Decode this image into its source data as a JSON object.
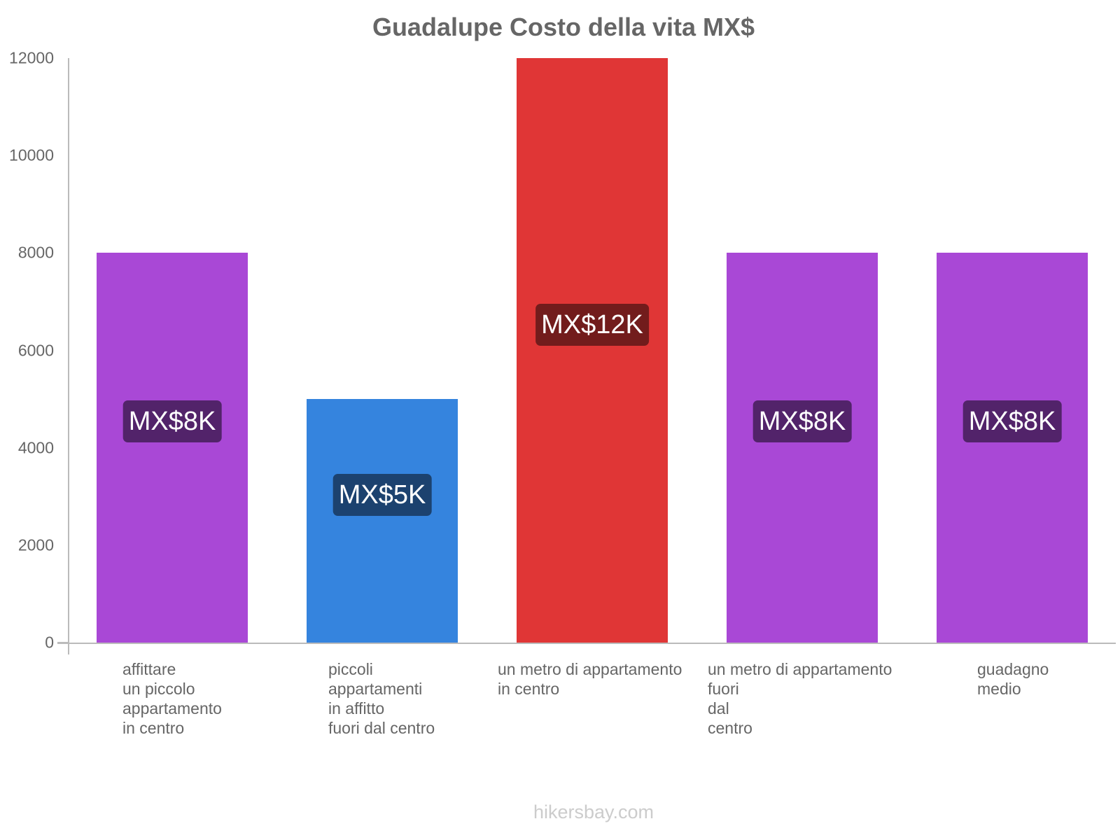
{
  "chart_data": {
    "type": "bar",
    "title": "Guadalupe Costo della vita MX$",
    "xlabel": "",
    "ylabel": "",
    "ylim": [
      0,
      12000
    ],
    "yticks": [
      0,
      2000,
      4000,
      6000,
      8000,
      10000,
      12000
    ],
    "grid": false,
    "legend": null,
    "categories": [
      "affittare un piccolo appartamento in centro",
      "piccoli appartamenti in affitto fuori dal centro",
      "un metro di appartamento in centro",
      "un metro di appartamento fuori dal centro",
      "guadagno medio"
    ],
    "values": [
      8000,
      5000,
      12000,
      8000,
      8000
    ],
    "data_labels": [
      "MX$8K",
      "MX$5K",
      "MX$12K",
      "MX$8K",
      "MX$8K"
    ],
    "colors": [
      "#a948d6",
      "#3584de",
      "#e03636",
      "#a948d6",
      "#a948d6"
    ],
    "label_bg_colors": [
      "#52236a",
      "#1c426f",
      "#721c1c",
      "#52236a",
      "#52236a"
    ]
  },
  "axis": {
    "yticks": [
      "0",
      "2000",
      "4000",
      "6000",
      "8000",
      "10000",
      "12000"
    ]
  },
  "xlabels": [
    "affittare\nun piccolo\nappartamento\nin centro",
    "piccoli\nappartamenti\nin affitto\nfuori dal centro",
    "un metro di appartamento\nin centro",
    "un metro di appartamento\nfuori\ndal\ncentro",
    "guadagno\nmedio"
  ],
  "footer": "hikersbay.com"
}
